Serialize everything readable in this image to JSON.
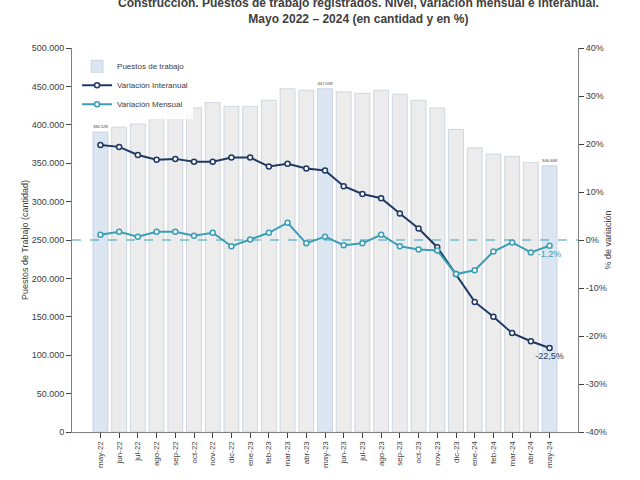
{
  "chart_data": {
    "type": "bar",
    "title": "Construcción. Puestos de trabajo registrados. Nivel, variación mensual e interanual.",
    "subtitle": "Mayo 2022 – 2024 (en cantidad y en %)",
    "ylabel": "Puestos de Trabajo (cantidad)",
    "y2label": "% de variación",
    "categories": [
      "may-22",
      "jun-22",
      "jul-22",
      "ago-22",
      "sep-22",
      "oct-22",
      "nov-22",
      "dic-22",
      "ene-23",
      "feb-23",
      "mar-23",
      "abr-23",
      "may-23",
      "jun-23",
      "jul-23",
      "ago-23",
      "sep-23",
      "oct-23",
      "nov-23",
      "dic-23",
      "ene-24",
      "feb-24",
      "mar-24",
      "abr-24",
      "may-24"
    ],
    "series": [
      {
        "name": "Puestos de trabajo",
        "type": "bar",
        "colors": [
          "#dce6f2",
          "#ececec",
          "#ececec",
          "#ececec",
          "#ececec",
          "#ececec",
          "#ececec",
          "#ececec",
          "#ececec",
          "#ececec",
          "#ececec",
          "#ececec",
          "#dce6f2",
          "#ececec",
          "#ececec",
          "#ececec",
          "#ececec",
          "#ececec",
          "#ececec",
          "#ececec",
          "#ececec",
          "#ececec",
          "#ececec",
          "#ececec",
          "#dce6f2"
        ],
        "values": [
          390528,
          397000,
          401000,
          409000,
          417000,
          422000,
          429000,
          424000,
          424000,
          432000,
          447000,
          445000,
          447038,
          443000,
          441000,
          445000,
          440000,
          432000,
          422000,
          394000,
          370000,
          362000,
          359000,
          351000,
          346668
        ],
        "value_labels": [
          "390.528",
          null,
          null,
          null,
          null,
          null,
          null,
          null,
          null,
          null,
          null,
          null,
          "447.038",
          null,
          null,
          null,
          null,
          null,
          null,
          null,
          null,
          null,
          null,
          null,
          "346.668"
        ]
      },
      {
        "name": "Variación Interanual",
        "type": "line",
        "axis": "y2",
        "color": "#1f3864",
        "marker": "circle",
        "line_style": "solid",
        "values": [
          19.8,
          19.4,
          17.7,
          16.7,
          16.9,
          16.3,
          16.3,
          17.2,
          17.2,
          15.3,
          15.9,
          14.9,
          14.5,
          11.2,
          9.6,
          8.7,
          5.5,
          2.4,
          -1.5,
          -7.1,
          -12.9,
          -16.0,
          -19.4,
          -21.1,
          -22.5
        ],
        "value_labels": [
          null,
          null,
          null,
          null,
          null,
          null,
          null,
          null,
          null,
          null,
          null,
          null,
          null,
          null,
          null,
          null,
          null,
          null,
          null,
          null,
          null,
          null,
          null,
          null,
          "-22,5%"
        ]
      },
      {
        "name": "Variación Mensual",
        "type": "line",
        "axis": "y2",
        "color": "#3a9fb5",
        "marker": "circle",
        "line_style": "solid",
        "values": [
          1.1,
          1.7,
          0.7,
          1.7,
          1.7,
          0.9,
          1.5,
          -1.3,
          0.1,
          1.5,
          3.6,
          -0.7,
          0.7,
          -1.1,
          -0.7,
          1.1,
          -1.3,
          -2.0,
          -2.2,
          -7.1,
          -6.3,
          -2.4,
          -0.5,
          -2.6,
          -1.2
        ],
        "value_labels": [
          null,
          null,
          null,
          null,
          null,
          null,
          null,
          null,
          null,
          null,
          null,
          null,
          null,
          null,
          null,
          null,
          null,
          null,
          null,
          null,
          null,
          null,
          null,
          null,
          "-1,2%"
        ]
      }
    ],
    "ylim": [
      0,
      500000
    ],
    "yticks": [
      0,
      {
        "value": 50000,
        "label": "50.000"
      },
      {
        "value": 100000,
        "label": "100.000"
      },
      {
        "value": 150000,
        "label": "150.000"
      },
      {
        "value": 200000,
        "label": "200.000"
      },
      {
        "value": 250000,
        "label": "250.000"
      },
      {
        "value": 300000,
        "label": "300.000"
      },
      {
        "value": 350000,
        "label": "350.000"
      },
      {
        "value": 400000,
        "label": "400.000"
      },
      {
        "value": 450000,
        "label": "450.000"
      },
      {
        "value": 500000,
        "label": "500.000"
      }
    ],
    "y2lim": [
      -40,
      40
    ],
    "y2ticks": [
      {
        "value": -40,
        "label": "-40%"
      },
      {
        "value": -30,
        "label": "-30%"
      },
      {
        "value": -20,
        "label": "-20%"
      },
      {
        "value": -10,
        "label": "-10%"
      },
      {
        "value": 0,
        "label": "0%"
      },
      {
        "value": 10,
        "label": "10%"
      },
      {
        "value": 20,
        "label": "20%"
      },
      {
        "value": 30,
        "label": "30%"
      },
      {
        "value": 40,
        "label": "40%"
      }
    ],
    "grid": false,
    "legend": "upper left",
    "data_labels": true
  }
}
